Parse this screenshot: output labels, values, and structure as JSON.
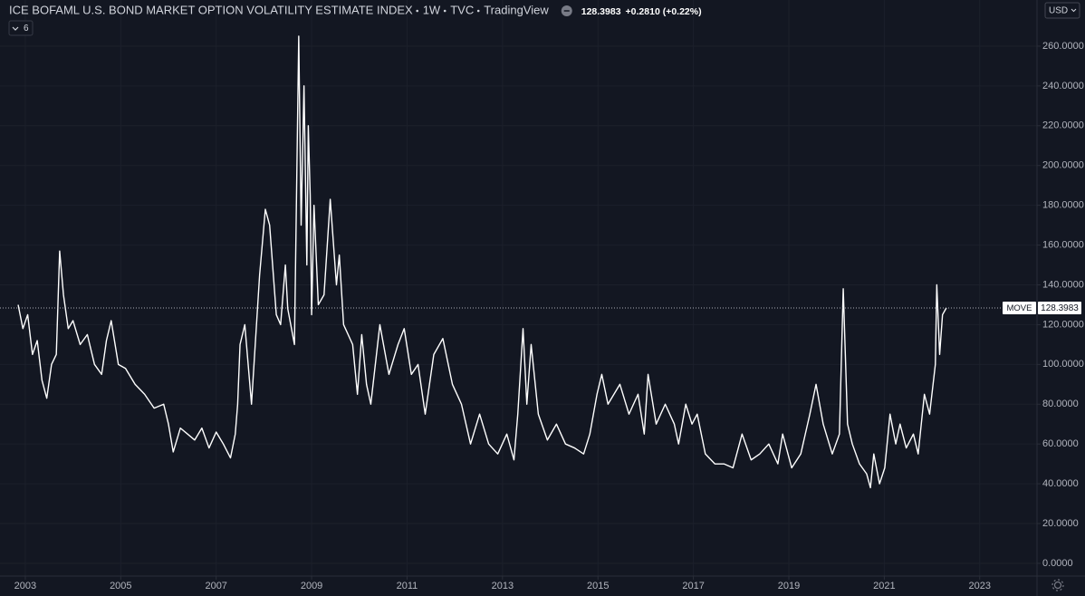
{
  "chart_data": {
    "type": "line",
    "title": "ICE BOFAML U.S. BOND MARKET OPTION VOLATILITY ESTIMATE INDEX",
    "interval": "1W",
    "source": "TVC",
    "brand": "TradingView",
    "price_change": "+0.2810 (+0.22%)",
    "currency": "USD",
    "indicator_count": 6,
    "series": [
      {
        "name": "MOVE",
        "color": "#ffffff",
        "x": [
          2002.85,
          2002.95,
          2003.05,
          2003.15,
          2003.25,
          2003.35,
          2003.45,
          2003.55,
          2003.65,
          2003.72,
          2003.8,
          2003.9,
          2004.0,
          2004.15,
          2004.3,
          2004.45,
          2004.6,
          2004.7,
          2004.8,
          2004.95,
          2005.1,
          2005.3,
          2005.5,
          2005.7,
          2005.9,
          2006.0,
          2006.1,
          2006.25,
          2006.4,
          2006.55,
          2006.7,
          2006.85,
          2007.0,
          2007.15,
          2007.3,
          2007.4,
          2007.45,
          2007.5,
          2007.6,
          2007.74,
          2007.91,
          2008.03,
          2008.12,
          2008.26,
          2008.35,
          2008.45,
          2008.5,
          2008.64,
          2008.73,
          2008.78,
          2008.84,
          2008.9,
          2008.93,
          2008.97,
          2009.0,
          2009.05,
          2009.14,
          2009.26,
          2009.39,
          2009.52,
          2009.58,
          2009.67,
          2009.86,
          2009.96,
          2010.05,
          2010.15,
          2010.24,
          2010.43,
          2010.62,
          2010.81,
          2010.94,
          2011.09,
          2011.23,
          2011.38,
          2011.56,
          2011.75,
          2011.95,
          2012.14,
          2012.33,
          2012.52,
          2012.71,
          2012.9,
          2013.09,
          2013.24,
          2013.32,
          2013.43,
          2013.51,
          2013.6,
          2013.75,
          2013.94,
          2014.13,
          2014.32,
          2014.51,
          2014.7,
          2014.83,
          2014.98,
          2015.08,
          2015.21,
          2015.46,
          2015.65,
          2015.84,
          2015.97,
          2016.05,
          2016.22,
          2016.41,
          2016.6,
          2016.69,
          2016.84,
          2016.97,
          2017.08,
          2017.25,
          2017.45,
          2017.64,
          2017.83,
          2018.02,
          2018.21,
          2018.39,
          2018.58,
          2018.77,
          2018.87,
          2019.06,
          2019.25,
          2019.44,
          2019.57,
          2019.72,
          2019.91,
          2020.06,
          2020.14,
          2020.23,
          2020.33,
          2020.48,
          2020.63,
          2020.71,
          2020.78,
          2020.9,
          2021.01,
          2021.12,
          2021.24,
          2021.33,
          2021.46,
          2021.61,
          2021.71,
          2021.84,
          2021.95,
          2022.07,
          2022.1,
          2022.16,
          2022.22,
          2022.3
        ],
        "values": [
          130,
          118,
          125,
          105,
          112,
          92,
          83,
          100,
          105,
          157,
          135,
          118,
          122,
          110,
          115,
          100,
          95,
          112,
          122,
          100,
          98,
          90,
          85,
          78,
          80,
          70,
          56,
          68,
          65,
          62,
          68,
          58,
          66,
          60,
          53,
          65,
          80,
          110,
          120,
          80,
          145,
          178,
          170,
          125,
          120,
          150,
          128,
          110,
          265,
          170,
          240,
          150,
          220,
          185,
          125,
          180,
          130,
          135,
          183,
          140,
          155,
          120,
          110,
          85,
          115,
          90,
          80,
          120,
          95,
          110,
          118,
          95,
          100,
          75,
          105,
          113,
          90,
          80,
          60,
          75,
          60,
          55,
          65,
          52,
          75,
          118,
          80,
          110,
          75,
          62,
          70,
          60,
          58,
          55,
          65,
          85,
          95,
          80,
          90,
          75,
          85,
          65,
          95,
          70,
          80,
          70,
          60,
          80,
          70,
          75,
          55,
          50,
          50,
          48,
          65,
          52,
          55,
          60,
          50,
          65,
          48,
          55,
          75,
          90,
          70,
          55,
          65,
          138,
          70,
          60,
          50,
          45,
          38,
          55,
          40,
          48,
          75,
          60,
          70,
          58,
          65,
          55,
          85,
          75,
          100,
          140,
          105,
          125,
          128.3983
        ]
      }
    ],
    "xlim": [
      2002.47,
      2024.2
    ],
    "ylim": [
      -6.4,
      283.2
    ],
    "xticks": [
      2003,
      2005,
      2007,
      2009,
      2011,
      2013,
      2015,
      2017,
      2019,
      2021,
      2023
    ],
    "yticks": [
      {
        "value": 0,
        "label": "0.0000"
      },
      {
        "value": 20,
        "label": "20.0000"
      },
      {
        "value": 40,
        "label": "40.0000"
      },
      {
        "value": 60,
        "label": "60.0000"
      },
      {
        "value": 80,
        "label": "80.0000"
      },
      {
        "value": 100,
        "label": "100.0000"
      },
      {
        "value": 120,
        "label": "120.0000"
      },
      {
        "value": 140,
        "label": "140.0000"
      },
      {
        "value": 160,
        "label": "160.0000"
      },
      {
        "value": 180,
        "label": "180.0000"
      },
      {
        "value": 200,
        "label": "200.0000"
      },
      {
        "value": 220,
        "label": "220.0000"
      },
      {
        "value": 240,
        "label": "240.0000"
      },
      {
        "value": 260,
        "label": "260.0000"
      }
    ],
    "grid": true
  }
}
